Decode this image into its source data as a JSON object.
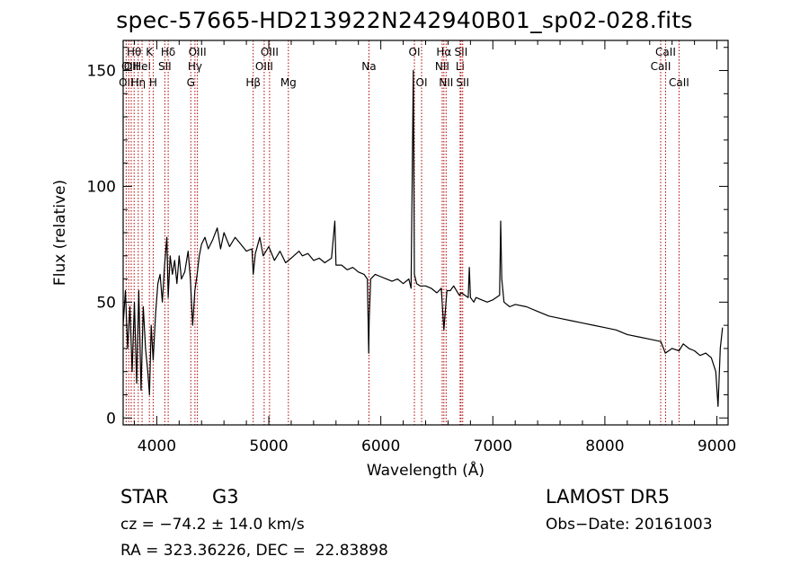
{
  "chart_data": {
    "type": "line",
    "title": "spec-57665-HD213922N242940B01_sp02-028.fits",
    "xlabel": "Wavelength (Å)",
    "ylabel": "Flux (relative)",
    "xlim": [
      3700,
      9100
    ],
    "ylim": [
      -3,
      163
    ],
    "xticks": [
      4000,
      5000,
      6000,
      7000,
      8000,
      9000
    ],
    "yticks": [
      0,
      50,
      100,
      150
    ],
    "grid": false,
    "series": [
      {
        "x": [
          3700,
          3720,
          3740,
          3760,
          3780,
          3800,
          3820,
          3840,
          3860,
          3880,
          3900,
          3920,
          3935,
          3950,
          3968,
          3990,
          4010,
          4030,
          4050,
          4070,
          4090,
          4102,
          4120,
          4140,
          4160,
          4180,
          4200,
          4220,
          4250,
          4280,
          4300,
          4320,
          4340,
          4360,
          4380,
          4400,
          4430,
          4460,
          4500,
          4540,
          4570,
          4600,
          4650,
          4700,
          4750,
          4800,
          4850,
          4861,
          4880,
          4920,
          4950,
          5000,
          5050,
          5100,
          5150,
          5200,
          5270,
          5300,
          5350,
          5400,
          5450,
          5500,
          5560,
          5590,
          5600,
          5650,
          5700,
          5750,
          5800,
          5850,
          5880,
          5892,
          5896,
          5910,
          5950,
          6000,
          6050,
          6100,
          6150,
          6200,
          6250,
          6270,
          6290,
          6300,
          6320,
          6350,
          6400,
          6450,
          6500,
          6540,
          6563,
          6590,
          6620,
          6650,
          6700,
          6720,
          6750,
          6780,
          6790,
          6800,
          6830,
          6850,
          6900,
          6950,
          7000,
          7030,
          7060,
          7070,
          7080,
          7100,
          7150,
          7200,
          7300,
          7400,
          7500,
          7600,
          7700,
          7800,
          7900,
          8000,
          8100,
          8200,
          8300,
          8400,
          8500,
          8540,
          8600,
          8662,
          8700,
          8750,
          8800,
          8850,
          8900,
          8950,
          8990,
          9010,
          9030,
          9050
        ],
        "y": [
          40,
          55,
          30,
          48,
          20,
          50,
          15,
          55,
          12,
          48,
          30,
          20,
          10,
          40,
          25,
          45,
          58,
          62,
          50,
          66,
          78,
          52,
          70,
          62,
          68,
          58,
          70,
          60,
          63,
          72,
          60,
          40,
          55,
          62,
          70,
          75,
          78,
          73,
          77,
          82,
          73,
          80,
          74,
          78,
          75,
          72,
          73,
          62,
          71,
          78,
          70,
          74,
          68,
          72,
          67,
          69,
          72,
          70,
          71,
          68,
          69,
          67,
          69,
          85,
          66,
          66,
          64,
          65,
          63,
          62,
          60,
          28,
          42,
          60,
          62,
          61,
          60,
          59,
          60,
          58,
          60,
          56,
          150,
          62,
          58,
          57,
          57,
          56,
          54,
          56,
          38,
          55,
          55,
          57,
          53,
          54,
          53,
          52,
          65,
          52,
          50,
          52,
          51,
          50,
          51,
          52,
          53,
          85,
          60,
          50,
          48,
          49,
          48,
          46,
          44,
          43,
          42,
          41,
          40,
          39,
          38,
          36,
          35,
          34,
          33,
          28,
          30,
          29,
          32,
          30,
          29,
          27,
          28,
          26,
          20,
          5,
          30,
          39
        ]
      }
    ],
    "line_marks": [
      {
        "x": 3727,
        "row": 3,
        "text": "OII"
      },
      {
        "x": 3750,
        "row": 2,
        "text": "OII"
      },
      {
        "x": 3772,
        "row": 2,
        "text": "OII"
      },
      {
        "x": 3798,
        "row": 1,
        "text": "Hθ"
      },
      {
        "x": 3835,
        "row": 3,
        "text": "Hη"
      },
      {
        "x": 3869,
        "row": 2,
        "text": "HeI"
      },
      {
        "x": 3934,
        "row": 1,
        "text": "K"
      },
      {
        "x": 3968,
        "row": 3,
        "text": "H"
      },
      {
        "x": 4072,
        "row": 2,
        "text": "SII"
      },
      {
        "x": 4102,
        "row": 1,
        "text": "Hδ"
      },
      {
        "x": 4304,
        "row": 3,
        "text": "G"
      },
      {
        "x": 4341,
        "row": 2,
        "text": "Hγ"
      },
      {
        "x": 4363,
        "row": 1,
        "text": "OIII"
      },
      {
        "x": 4861,
        "row": 3,
        "text": "Hβ"
      },
      {
        "x": 4959,
        "row": 2,
        "text": "OIII"
      },
      {
        "x": 5007,
        "row": 1,
        "text": "OIII"
      },
      {
        "x": 5175,
        "row": 3,
        "text": "Mg"
      },
      {
        "x": 5894,
        "row": 2,
        "text": "Na"
      },
      {
        "x": 6300,
        "row": 1,
        "text": "OI"
      },
      {
        "x": 6364,
        "row": 3,
        "text": "OI"
      },
      {
        "x": 6548,
        "row": 2,
        "text": "NII"
      },
      {
        "x": 6563,
        "row": 1,
        "text": "Hα"
      },
      {
        "x": 6583,
        "row": 3,
        "text": "NII"
      },
      {
        "x": 6708,
        "row": 2,
        "text": "Li"
      },
      {
        "x": 6716,
        "row": 1,
        "text": "SII"
      },
      {
        "x": 6731,
        "row": 3,
        "text": "SII"
      },
      {
        "x": 8498,
        "row": 2,
        "text": "CaII"
      },
      {
        "x": 8542,
        "row": 1,
        "text": "CaII"
      },
      {
        "x": 8662,
        "row": 3,
        "text": "CaII"
      }
    ],
    "colors": {
      "spectrum": "#000000",
      "line_marker": "#b00000",
      "axis": "#000000"
    }
  },
  "info": {
    "object_class": "STAR",
    "subclass": "G3",
    "cz": "cz = −74.2 ± 14.0 km/s",
    "coords": "RA = 323.36226, DEC =  22.83898",
    "survey": "LAMOST DR5",
    "obs_date": "Obs−Date: 20161003"
  }
}
